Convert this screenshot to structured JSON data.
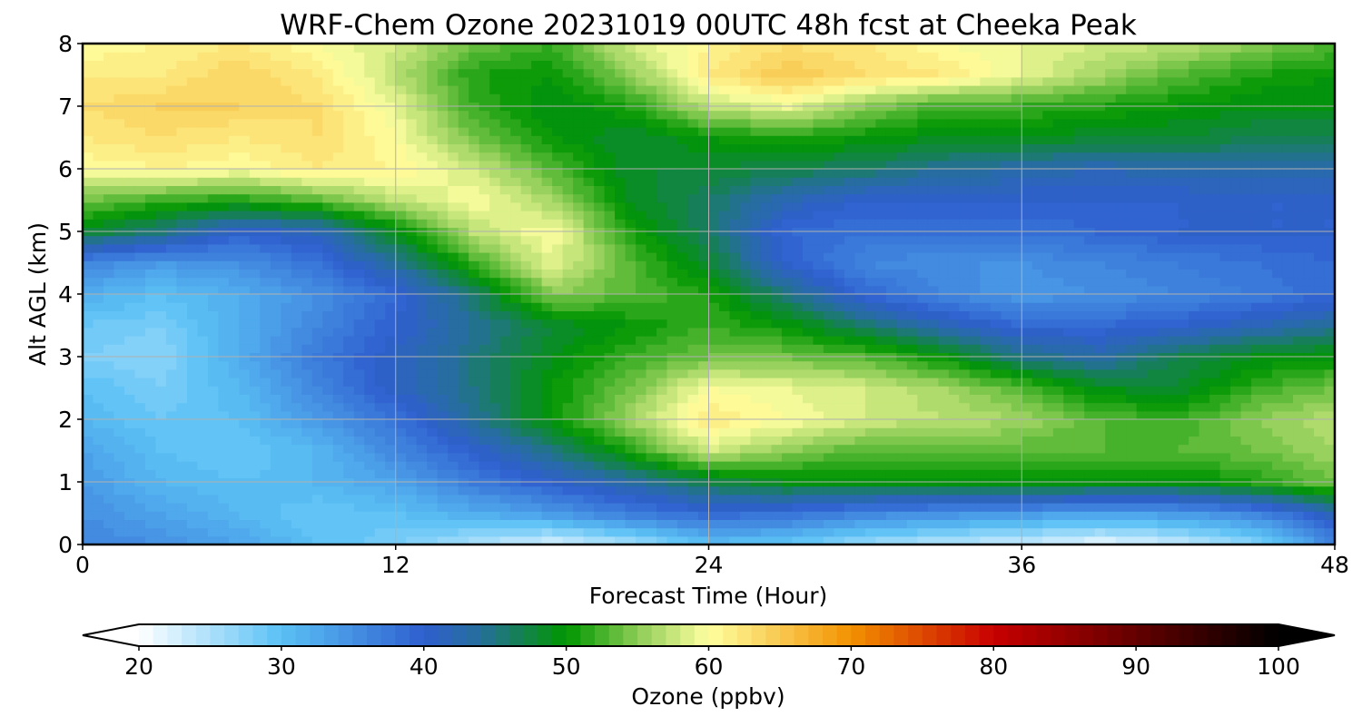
{
  "chart_data": {
    "type": "heatmap",
    "title": "WRF-Chem Ozone  20231019 00UTC 48h fcst at Cheeka Peak",
    "xlabel": "Forecast Time (Hour)",
    "ylabel": "Alt AGL (km)",
    "xlim": [
      0,
      48
    ],
    "ylim": [
      0,
      8
    ],
    "x_ticks": [
      0,
      12,
      24,
      36,
      48
    ],
    "y_ticks": [
      0,
      1,
      2,
      3,
      4,
      5,
      6,
      7,
      8
    ],
    "grid": true,
    "x": [
      0,
      3,
      6,
      9,
      12,
      15,
      18,
      21,
      24,
      27,
      30,
      33,
      36,
      39,
      42,
      45,
      48
    ],
    "y": [
      0,
      0.5,
      1,
      1.5,
      2,
      2.5,
      3,
      3.5,
      4,
      4.5,
      5,
      5.5,
      6,
      6.5,
      7,
      7.5,
      8
    ],
    "z": [
      [
        36,
        35,
        33,
        30,
        28,
        25,
        22,
        25,
        30,
        29,
        26,
        24,
        23,
        21,
        23,
        27,
        36
      ],
      [
        35,
        33,
        31,
        29,
        30,
        32,
        34,
        37,
        39,
        38,
        36,
        35,
        34,
        33,
        34,
        36,
        42
      ],
      [
        34,
        31,
        30,
        31,
        33,
        37,
        40,
        43,
        47,
        49,
        49,
        49,
        50,
        49,
        49,
        51,
        54
      ],
      [
        33,
        30,
        29,
        31,
        36,
        40,
        45,
        51,
        58,
        55,
        53,
        53,
        53,
        53,
        53,
        54,
        56
      ],
      [
        31,
        29,
        30,
        34,
        38,
        44,
        50,
        56,
        62,
        60,
        58,
        57,
        56,
        53,
        52,
        55,
        57
      ],
      [
        30,
        28,
        31,
        36,
        41,
        45,
        50,
        54,
        60,
        59,
        58,
        56,
        53,
        49,
        48,
        52,
        54
      ],
      [
        28,
        27,
        32,
        37,
        41,
        45,
        49,
        52,
        54,
        54,
        53,
        50,
        45,
        43,
        47,
        49,
        50
      ],
      [
        29,
        28,
        32,
        36,
        40,
        44,
        48,
        50,
        52,
        50,
        46,
        42,
        39,
        39,
        40,
        42,
        44
      ],
      [
        32,
        30,
        32,
        35,
        39,
        46,
        55,
        53,
        51,
        45,
        39,
        36,
        34,
        35,
        36,
        37,
        39
      ],
      [
        36,
        34,
        35,
        38,
        44,
        52,
        59,
        53,
        48,
        40,
        36,
        35,
        35,
        36,
        37,
        38,
        39
      ],
      [
        48,
        45,
        40,
        42,
        49,
        57,
        60,
        51,
        46,
        39,
        38,
        38,
        38,
        39,
        40,
        40,
        40
      ],
      [
        54,
        52,
        51,
        53,
        57,
        60,
        56,
        49,
        46,
        42,
        40,
        40,
        40,
        40,
        40,
        40,
        40
      ],
      [
        60,
        61,
        60,
        62,
        61,
        58,
        53,
        48,
        48,
        47,
        46,
        44,
        43,
        42,
        43,
        43,
        43
      ],
      [
        62,
        63,
        62,
        63,
        60,
        54,
        50,
        48,
        50,
        51,
        50,
        49,
        49,
        48,
        48,
        47,
        47
      ],
      [
        63,
        64,
        64,
        63,
        59,
        52,
        49,
        51,
        57,
        59,
        55,
        52,
        52,
        51,
        50,
        49,
        49
      ],
      [
        62,
        62,
        64,
        62,
        57,
        51,
        50,
        55,
        62,
        65,
        63,
        62,
        59,
        56,
        53,
        51,
        50
      ],
      [
        60,
        61,
        62,
        60,
        58,
        54,
        52,
        58,
        61,
        63,
        62,
        60,
        59,
        58,
        57,
        55,
        53
      ]
    ],
    "colorbar": {
      "label": "Ozone  (ppbv)",
      "ticks": [
        20,
        30,
        40,
        50,
        60,
        70,
        80,
        90,
        100
      ],
      "min": 20,
      "max": 100,
      "step": 1,
      "extend": "both",
      "stops": [
        {
          "v": 20,
          "c": "#ffffff"
        },
        {
          "v": 30,
          "c": "#5ac1f5"
        },
        {
          "v": 40,
          "c": "#2f5fcf"
        },
        {
          "v": 44,
          "c": "#266f9a"
        },
        {
          "v": 50,
          "c": "#009600"
        },
        {
          "v": 55,
          "c": "#8ccc55"
        },
        {
          "v": 60,
          "c": "#ffffa0"
        },
        {
          "v": 70,
          "c": "#f29100"
        },
        {
          "v": 80,
          "c": "#c80000"
        },
        {
          "v": 100,
          "c": "#000000"
        }
      ]
    }
  }
}
